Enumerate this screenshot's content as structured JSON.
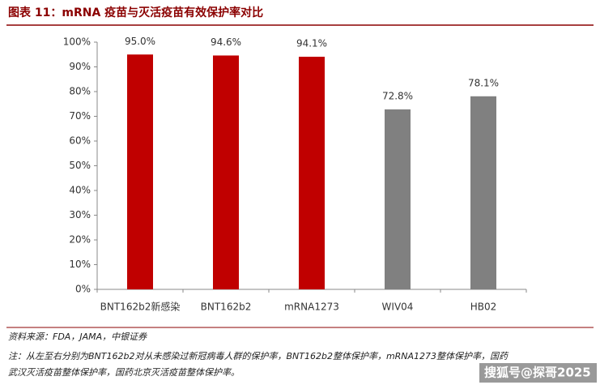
{
  "chart_data": {
    "type": "bar",
    "title": "图表 11：mRNA 疫苗与灭活疫苗有效保护率对比",
    "categories": [
      "BNT162b2新感染",
      "BNT162b2",
      "mRNA1273",
      "WIV04",
      "HB02"
    ],
    "values": [
      95.0,
      94.6,
      94.1,
      72.8,
      78.1
    ],
    "value_labels": [
      "95.0%",
      "94.6%",
      "94.1%",
      "72.8%",
      "78.1%"
    ],
    "colors": [
      "#c00000",
      "#c00000",
      "#c00000",
      "#808080",
      "#808080"
    ],
    "ylim": [
      0,
      100
    ],
    "yticks": [
      {
        "value": 0,
        "label": "0%"
      },
      {
        "value": 10,
        "label": "10%"
      },
      {
        "value": 20,
        "label": "20%"
      },
      {
        "value": 30,
        "label": "30%"
      },
      {
        "value": 40,
        "label": "40%"
      },
      {
        "value": 50,
        "label": "50%"
      },
      {
        "value": 60,
        "label": "60%"
      },
      {
        "value": 70,
        "label": "70%"
      },
      {
        "value": 80,
        "label": "80%"
      },
      {
        "value": 90,
        "label": "90%"
      },
      {
        "value": 100,
        "label": "100%"
      }
    ],
    "grid": false,
    "source": "资料来源：FDA，JAMA，中银证券",
    "notes": [
      "注：从左至右分别为BNT162b2对从未感染过新冠病毒人群的保护率，BNT162b2整体保护率，mRNA1273整体保护率，国药",
      "武汉灭活疫苗整体保护率，国药北京灭活疫苗整体保护率。"
    ],
    "watermark": "搜狐号@探哥2025"
  }
}
